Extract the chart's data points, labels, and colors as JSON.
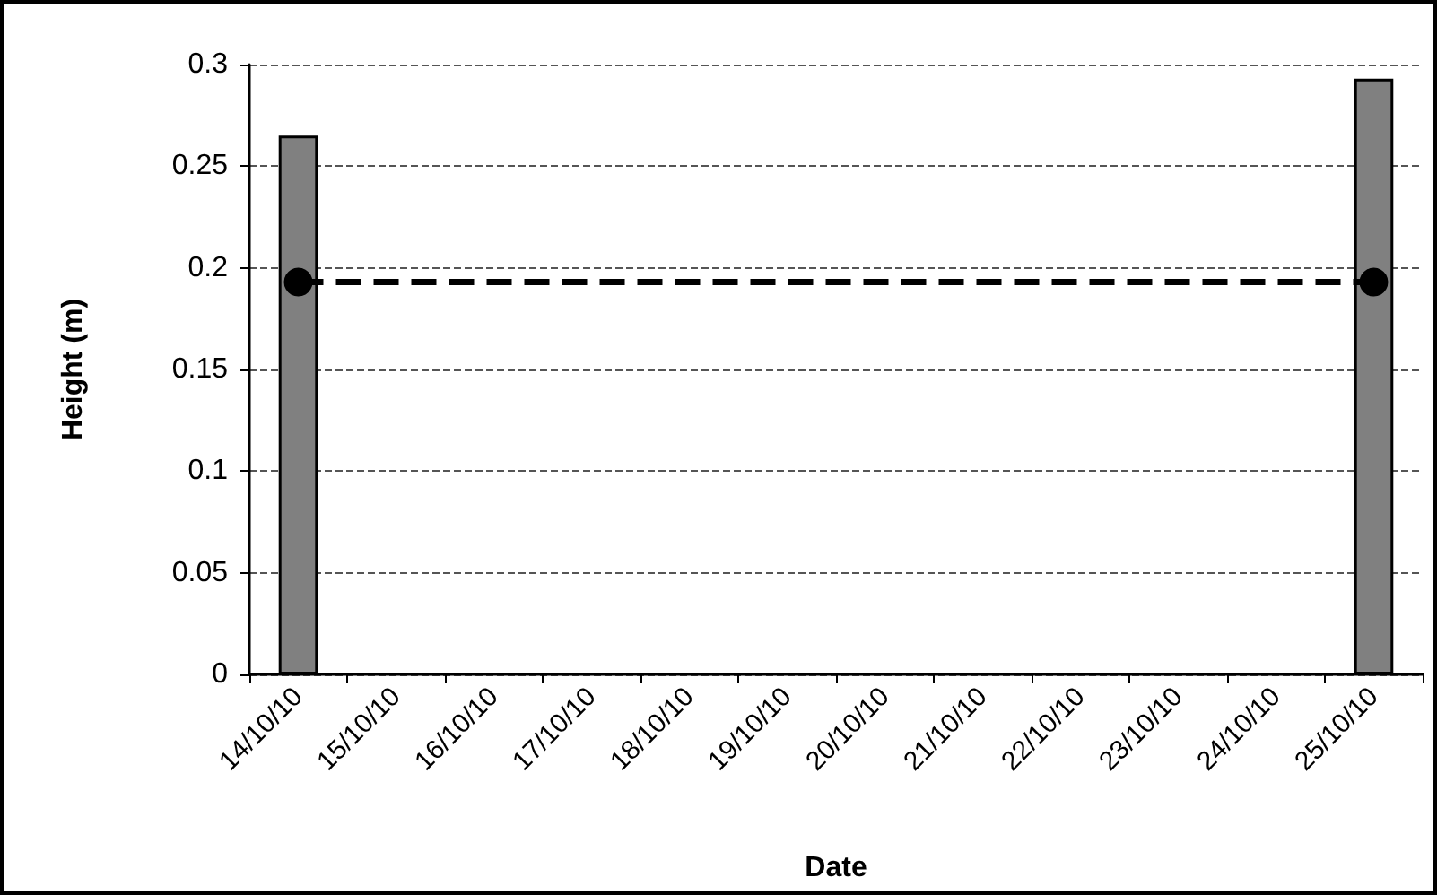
{
  "chart_data": {
    "type": "bar",
    "xlabel": "Date",
    "ylabel": "Height (m)",
    "categories": [
      "14/10/10",
      "15/10/10",
      "16/10/10",
      "17/10/10",
      "18/10/10",
      "19/10/10",
      "20/10/10",
      "21/10/10",
      "22/10/10",
      "23/10/10",
      "24/10/10",
      "25/10/10"
    ],
    "series": [
      {
        "color": "#808080",
        "values": [
          0.265,
          null,
          null,
          null,
          null,
          null,
          null,
          null,
          null,
          null,
          null,
          0.293
        ]
      },
      {
        "type": "line",
        "color": "#000000",
        "x": [
          "14/10/10",
          "25/10/10"
        ],
        "values": [
          0.193,
          0.193
        ],
        "line_style": "dashed",
        "marker": "circle"
      }
    ],
    "ylim": [
      0,
      0.3
    ],
    "yticks": [
      0,
      0.05,
      0.1,
      0.15,
      0.2,
      0.25,
      0.3
    ],
    "grid": "y"
  }
}
